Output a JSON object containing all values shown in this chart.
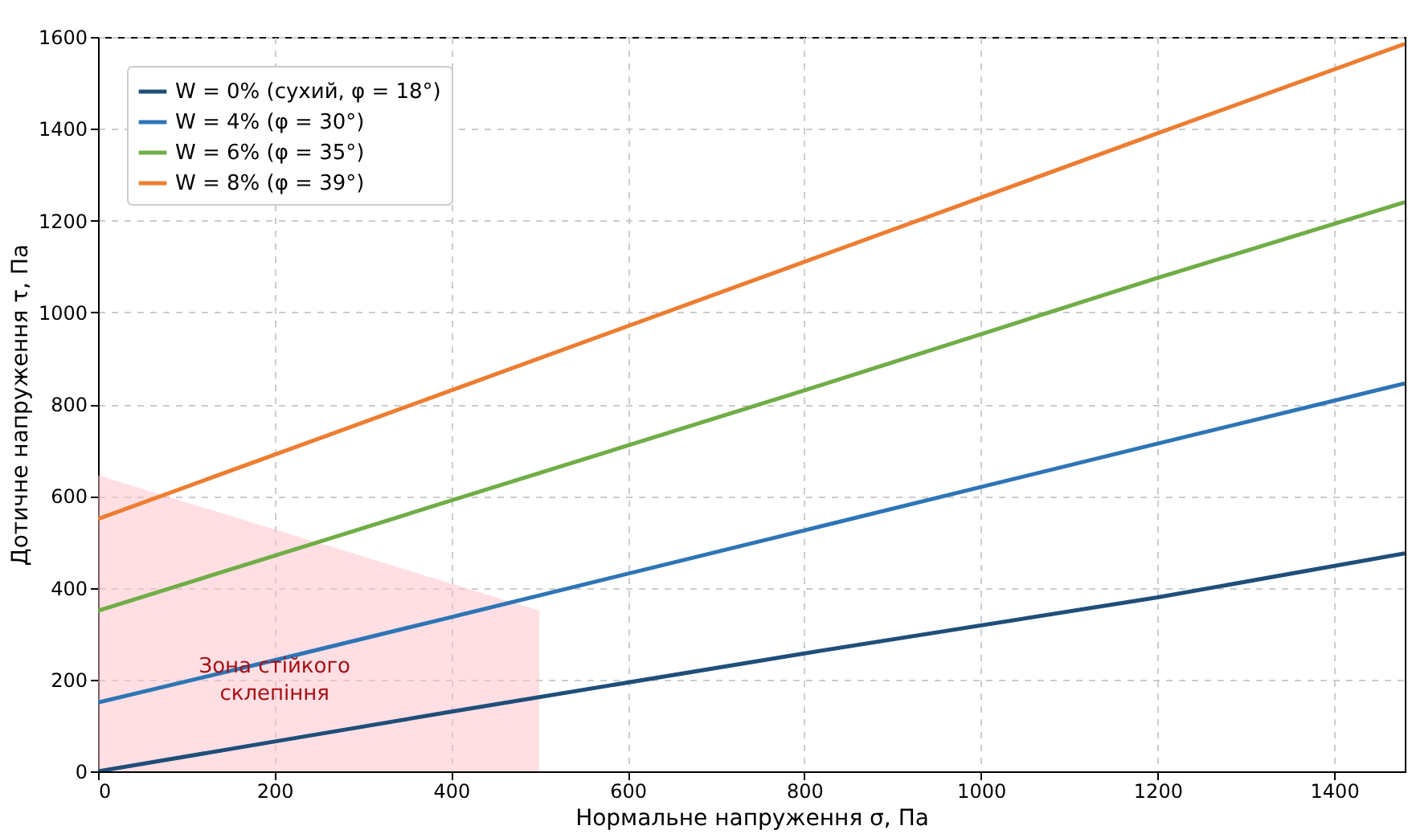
{
  "chart_data": {
    "type": "line",
    "xlabel": "Нормальне напруження σ, Па",
    "ylabel": "Дотичне напруження τ, Па",
    "xlim": [
      0,
      1480
    ],
    "ylim": [
      0,
      1600
    ],
    "xticks": [
      0,
      200,
      400,
      600,
      800,
      1000,
      1200,
      1400
    ],
    "yticks": [
      0,
      200,
      400,
      600,
      800,
      1000,
      1200,
      1400,
      1600
    ],
    "grid": true,
    "legend": "top left",
    "line_style": "solid",
    "x": [
      0,
      200,
      400,
      800,
      1200,
      1480
    ],
    "series": [
      {
        "name": "W = 0% (сухий, φ = 18°)",
        "color": "#1f4e79",
        "values": [
          0,
          65,
          130,
          257,
          379,
          475
        ]
      },
      {
        "name": "W = 4% (φ = 30°)",
        "color": "#2e75b6",
        "values": [
          150,
          242,
          336,
          525,
          714,
          845
        ]
      },
      {
        "name": "W = 6% (φ = 35°)",
        "color": "#70ad47",
        "values": [
          350,
          470,
          590,
          830,
          1075,
          1240
        ]
      },
      {
        "name": "W = 8% (φ = 39°)",
        "color": "#ed7d31",
        "values": [
          550,
          690,
          830,
          1110,
          1390,
          1585
        ]
      },
      {
        "type": "area",
        "color": "#ffc0c8",
        "x": [
          0,
          500
        ],
        "values": [
          645,
          350
        ]
      }
    ],
    "annotations": [
      {
        "text": "Зона стійкого\nсклепіння",
        "x": 200,
        "y": 230
      }
    ]
  }
}
